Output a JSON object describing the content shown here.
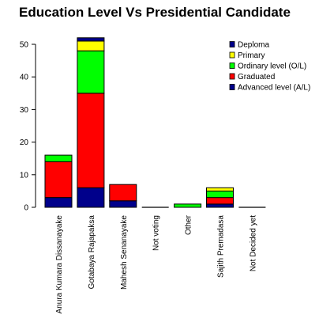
{
  "chart_data": {
    "type": "bar",
    "stacked": true,
    "title": "Education Level Vs Presidential Candidate",
    "xlabel": "",
    "ylabel": "",
    "ylim": [
      0,
      52
    ],
    "yticks": [
      0,
      10,
      20,
      30,
      40,
      50
    ],
    "categories": [
      "Anura Kumara Dissanayake",
      "Gotabaya Rajapaksa",
      "Mahesh Senanayake",
      "Not voting",
      "Other",
      "Sajith Premadasa",
      "Not Decided yet"
    ],
    "series": [
      {
        "name": "Advanced level (A/L)",
        "color": "#00008b",
        "values": [
          3,
          6,
          2,
          0,
          0,
          1,
          0
        ]
      },
      {
        "name": "Graduated",
        "color": "#ff0000",
        "values": [
          11,
          29,
          5,
          0,
          0,
          2,
          0
        ]
      },
      {
        "name": "Ordinary level (O/L)",
        "color": "#00ff00",
        "values": [
          2,
          13,
          0,
          0,
          1,
          2,
          0
        ]
      },
      {
        "name": "Primary",
        "color": "#ffff00",
        "values": [
          0,
          3,
          0,
          0,
          0,
          1,
          0
        ]
      },
      {
        "name": "Deploma",
        "color": "#00008b",
        "values": [
          0,
          1,
          0,
          0,
          0,
          0,
          0
        ]
      }
    ],
    "legend_order": [
      "Deploma",
      "Primary",
      "Ordinary level (O/L)",
      "Graduated",
      "Advanced level (A/L)"
    ],
    "legend_position": "top-right",
    "grid": false
  }
}
